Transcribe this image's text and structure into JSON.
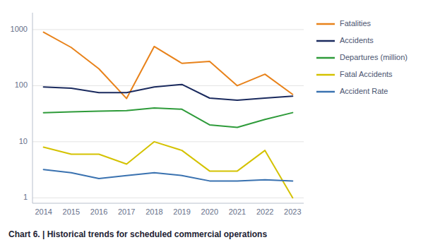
{
  "chart_data": {
    "type": "line",
    "title": "Chart 6. | Historical trends for scheduled commercial operations",
    "x": [
      2014,
      2015,
      2016,
      2017,
      2018,
      2019,
      2020,
      2021,
      2022,
      2023
    ],
    "series": [
      {
        "name": "Fatalities",
        "color": "#E8821A",
        "values": [
          900,
          480,
          200,
          59,
          500,
          250,
          270,
          100,
          160,
          70
        ]
      },
      {
        "name": "Accidents",
        "color": "#1A2A5E",
        "values": [
          95,
          90,
          75,
          75,
          95,
          105,
          60,
          55,
          60,
          65
        ]
      },
      {
        "name": "Departures (million)",
        "color": "#2E9B3A",
        "values": [
          33,
          34,
          35,
          36,
          40,
          38,
          20,
          18,
          25,
          33
        ]
      },
      {
        "name": "Fatal Accidents",
        "color": "#D4C200",
        "values": [
          8,
          6,
          6,
          4,
          10,
          7,
          3,
          3,
          7,
          1
        ]
      },
      {
        "name": "Accident Rate",
        "color": "#3A72B0",
        "values": [
          3.2,
          2.8,
          2.2,
          2.5,
          2.8,
          2.5,
          2.0,
          2.0,
          2.1,
          2.0
        ]
      }
    ],
    "xlim": [
      2013.6,
      2023.4
    ],
    "xticks": [
      2014,
      2015,
      2016,
      2017,
      2018,
      2019,
      2020,
      2021,
      2022,
      2023
    ],
    "ylim": [
      0.8,
      2000
    ],
    "yticks": [
      1,
      10,
      100,
      1000
    ],
    "log": "y",
    "grid": true,
    "legend": "right"
  }
}
